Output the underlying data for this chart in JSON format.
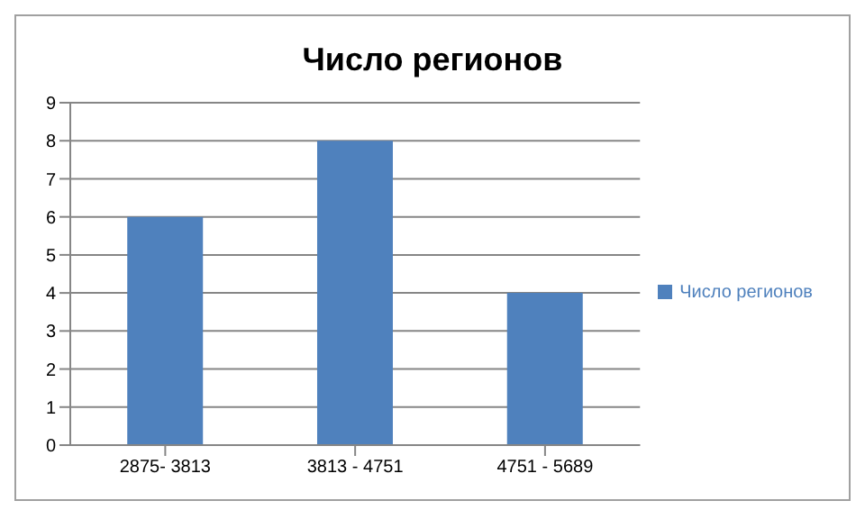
{
  "chart_data": {
    "type": "bar",
    "title": "Число регионов",
    "categories": [
      "2875- 3813",
      "3813 - 4751",
      "4751 - 5689"
    ],
    "series": [
      {
        "name": "Число регионов",
        "color": "#4f81bd",
        "values": [
          6,
          8,
          4
        ]
      }
    ],
    "ylim": [
      0,
      9
    ],
    "yticks": [
      0,
      1,
      2,
      3,
      4,
      5,
      6,
      7,
      8,
      9
    ],
    "grid": "y",
    "legend": "right"
  }
}
